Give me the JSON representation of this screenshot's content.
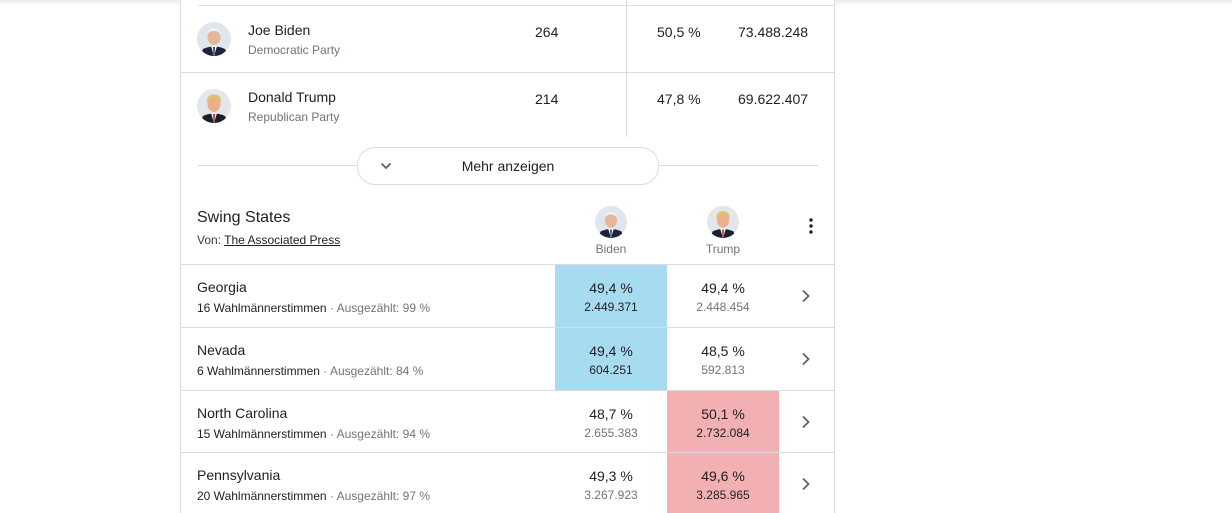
{
  "candidates": [
    {
      "name": "Joe Biden",
      "party": "Democratic Party",
      "electors": "264",
      "percent": "50,5 %",
      "votes": "73.488.248",
      "avatar_icon": "biden-portrait"
    },
    {
      "name": "Donald Trump",
      "party": "Republican Party",
      "electors": "214",
      "percent": "47,8 %",
      "votes": "69.622.407",
      "avatar_icon": "trump-portrait"
    }
  ],
  "show_more": {
    "label": "Mehr anzeigen",
    "icon": "chevron-down-icon"
  },
  "swing": {
    "title": "Swing States",
    "source_prefix": "Von: ",
    "source_link": "The Associated Press",
    "col_biden": "Biden",
    "col_trump": "Trump",
    "menu_icon": "more-vert-icon",
    "leader_colors": {
      "biden": "#a6dbf0",
      "trump": "#f2b0b3"
    },
    "states": [
      {
        "name": "Georgia",
        "electors": "16 Wahlmännerstimmen",
        "sep": "·",
        "counted": "Ausgezählt: 99 %",
        "biden_pct": "49,4 %",
        "biden_votes": "2.449.371",
        "trump_pct": "49,4 %",
        "trump_votes": "2.448.454",
        "leader": "biden"
      },
      {
        "name": "Nevada",
        "electors": "6 Wahlmännerstimmen",
        "sep": "·",
        "counted": "Ausgezählt: 84 %",
        "biden_pct": "49,4 %",
        "biden_votes": "604.251",
        "trump_pct": "48,5 %",
        "trump_votes": "592.813",
        "leader": "biden"
      },
      {
        "name": "North Carolina",
        "electors": "15 Wahlmännerstimmen",
        "sep": "·",
        "counted": "Ausgezählt: 94 %",
        "biden_pct": "48,7 %",
        "biden_votes": "2.655.383",
        "trump_pct": "50,1 %",
        "trump_votes": "2.732.084",
        "leader": "trump"
      },
      {
        "name": "Pennsylvania",
        "electors": "20 Wahlmännerstimmen",
        "sep": "·",
        "counted": "Ausgezählt: 97 %",
        "biden_pct": "49,3 %",
        "biden_votes": "3.267.923",
        "trump_pct": "49,6 %",
        "trump_votes": "3.285.965",
        "leader": "trump"
      }
    ]
  }
}
